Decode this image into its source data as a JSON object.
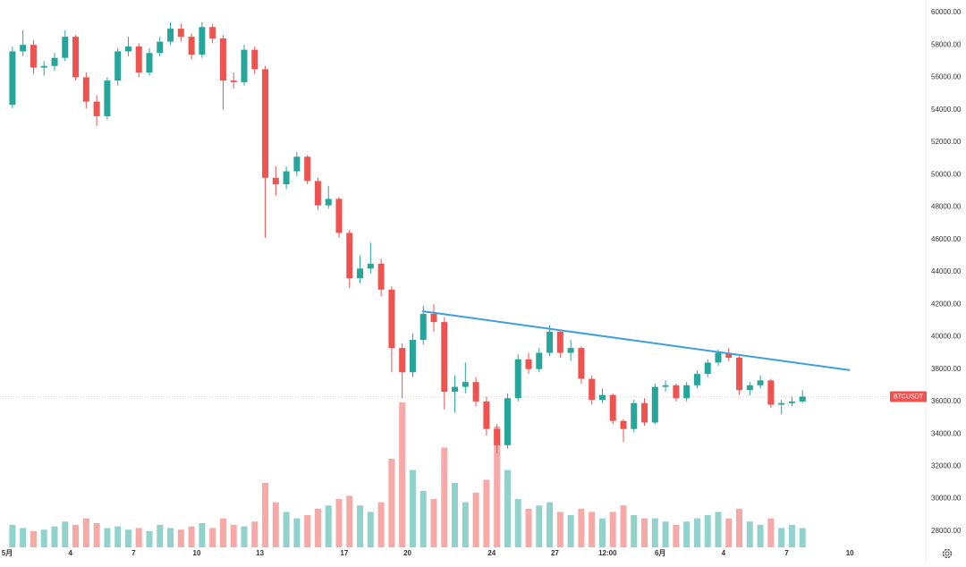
{
  "chart_data": {
    "type": "candlestick",
    "x": [
      0.25,
      0.75,
      1.25,
      1.75,
      2.25,
      2.75,
      3.25,
      3.75,
      4.25,
      4.75,
      5.25,
      5.75,
      6.25,
      6.75,
      7.25,
      7.75,
      8.25,
      8.75,
      9.25,
      9.75,
      10.25,
      10.75,
      11.25,
      11.75,
      12.25,
      12.75,
      13.25,
      13.75,
      14.25,
      14.75,
      15.25,
      15.75,
      16.25,
      16.75,
      17.25,
      17.75,
      18.25,
      18.75,
      19.25,
      19.75,
      20.25,
      20.75,
      21.25,
      21.75,
      22.25,
      22.75,
      23.25,
      23.75,
      24.25,
      24.75,
      25.25,
      25.75,
      26.25,
      26.75,
      27.25,
      27.75,
      28.25,
      28.75,
      29.25,
      29.75,
      30.25,
      30.75,
      31.25,
      31.75,
      32.25,
      32.75,
      33.25,
      33.75,
      34.25,
      34.75,
      35.25,
      35.75,
      36.25,
      36.75,
      37.25,
      37.75
    ],
    "open": [
      54300,
      57600,
      58000,
      56600,
      56700,
      57200,
      58500,
      56000,
      54500,
      53600,
      55800,
      57600,
      57900,
      56300,
      57500,
      58200,
      59000,
      58500,
      57400,
      59100,
      58400,
      55800,
      55700,
      57700,
      56500,
      49800,
      49400,
      50200,
      51100,
      49600,
      48100,
      48500,
      46400,
      43600,
      44200,
      44500,
      42900,
      39300,
      37800,
      39800,
      41400,
      40900,
      36600,
      36900,
      37200,
      36000,
      34300,
      33300,
      36200,
      38600,
      38000,
      39000,
      40300,
      39000,
      39300,
      37400,
      36100,
      36400,
      34800,
      34300,
      35900,
      34700,
      36900,
      37000,
      36200,
      37000,
      37700,
      38400,
      39000,
      38700,
      36700,
      37000,
      37300,
      35800,
      35900,
      36000
    ],
    "high": [
      57900,
      58900,
      58300,
      57000,
      57500,
      58900,
      58600,
      56300,
      54900,
      56000,
      57800,
      58500,
      58100,
      57800,
      58500,
      59400,
      59300,
      58700,
      59400,
      59300,
      58600,
      56300,
      58000,
      57900,
      56700,
      50500,
      50500,
      51400,
      51200,
      49800,
      49300,
      48600,
      46600,
      45000,
      45800,
      44800,
      43100,
      39600,
      40200,
      41900,
      42000,
      41200,
      37600,
      38400,
      37500,
      36300,
      34600,
      36500,
      38900,
      39000,
      39300,
      40700,
      40400,
      39800,
      39400,
      37600,
      36800,
      36500,
      34900,
      36100,
      36200,
      37100,
      37300,
      37100,
      37200,
      37900,
      38600,
      39200,
      39300,
      38800,
      37200,
      37600,
      37400,
      36100,
      36300,
      36700
    ],
    "low": [
      54100,
      57300,
      56200,
      56100,
      56400,
      57000,
      55800,
      54100,
      53000,
      53400,
      55500,
      57300,
      56000,
      56100,
      57300,
      58000,
      58200,
      57100,
      57200,
      58100,
      54000,
      55300,
      55500,
      56200,
      46100,
      48700,
      49100,
      49900,
      49400,
      47800,
      47900,
      46100,
      43000,
      43300,
      43900,
      42500,
      37800,
      36200,
      37500,
      39500,
      40300,
      35500,
      35300,
      36500,
      35700,
      33900,
      32800,
      33100,
      36000,
      37700,
      37800,
      38800,
      38700,
      38500,
      37100,
      35800,
      35900,
      34600,
      33500,
      34100,
      34500,
      34600,
      36600,
      36000,
      36000,
      36800,
      37500,
      38200,
      38500,
      36400,
      36400,
      36800,
      35600,
      35200,
      35700,
      35900
    ],
    "close": [
      57600,
      58000,
      56600,
      56700,
      57200,
      58500,
      56000,
      54500,
      53600,
      55800,
      57600,
      57900,
      56300,
      57500,
      58200,
      59000,
      58500,
      57400,
      59100,
      58400,
      55800,
      55700,
      57700,
      56500,
      49800,
      49400,
      50200,
      51100,
      49600,
      48100,
      48500,
      46400,
      43600,
      44200,
      44500,
      42900,
      39300,
      37800,
      39800,
      41400,
      40900,
      36600,
      36900,
      37200,
      36000,
      34300,
      33300,
      36200,
      38600,
      38000,
      39000,
      40300,
      39000,
      39300,
      37400,
      36100,
      36400,
      34800,
      34300,
      35900,
      34700,
      36900,
      37000,
      36200,
      37000,
      37700,
      38400,
      39000,
      38700,
      36700,
      37000,
      37300,
      35800,
      35900,
      36000,
      36300
    ],
    "volume": [
      14,
      12,
      10,
      11,
      13,
      16,
      14,
      18,
      15,
      12,
      13,
      11,
      12,
      10,
      14,
      12,
      11,
      13,
      15,
      12,
      18,
      14,
      13,
      16,
      40,
      28,
      22,
      18,
      20,
      24,
      26,
      30,
      32,
      26,
      22,
      28,
      55,
      90,
      48,
      35,
      30,
      62,
      40,
      28,
      34,
      42,
      75,
      48,
      30,
      24,
      26,
      28,
      22,
      20,
      24,
      22,
      18,
      22,
      26,
      20,
      18,
      18,
      16,
      14,
      16,
      18,
      20,
      22,
      18,
      24,
      16,
      14,
      18,
      12,
      14,
      12
    ],
    "up_color": "#26a69a",
    "down_color": "#ef5350",
    "xlim": [
      -0.34,
      43.6
    ],
    "xticks": [
      {
        "value": 0,
        "label": "5月"
      },
      {
        "value": 3,
        "label": "4"
      },
      {
        "value": 6,
        "label": "7"
      },
      {
        "value": 9,
        "label": "10"
      },
      {
        "value": 12,
        "label": "13"
      },
      {
        "value": 16,
        "label": "17"
      },
      {
        "value": 19,
        "label": "20"
      },
      {
        "value": 23,
        "label": "24"
      },
      {
        "value": 26,
        "label": "27"
      },
      {
        "value": 28.5,
        "label": "12:00"
      },
      {
        "value": 31,
        "label": "6月"
      },
      {
        "value": 34,
        "label": "4"
      },
      {
        "value": 37,
        "label": "7"
      },
      {
        "value": 40,
        "label": "10"
      }
    ],
    "ylim": [
      27000,
      60770
    ],
    "yticks": [
      {
        "value": 28000,
        "label": "28000.00"
      },
      {
        "value": 30000,
        "label": "30000.00"
      },
      {
        "value": 32000,
        "label": "32000.00"
      },
      {
        "value": 34000,
        "label": "34000.00"
      },
      {
        "value": 36000,
        "label": "36000.00"
      },
      {
        "value": 38000,
        "label": "38000.00"
      },
      {
        "value": 40000,
        "label": "40000.00"
      },
      {
        "value": 42000,
        "label": "42000.00"
      },
      {
        "value": 44000,
        "label": "44000.00"
      },
      {
        "value": 46000,
        "label": "46000.00"
      },
      {
        "value": 48000,
        "label": "48000.00"
      },
      {
        "value": 50000,
        "label": "50000.00"
      },
      {
        "value": 52000,
        "label": "52000.00"
      },
      {
        "value": 54000,
        "label": "54000.00"
      },
      {
        "value": 56000,
        "label": "56000.00"
      },
      {
        "value": 58000,
        "label": "58000.00"
      },
      {
        "value": 60000,
        "label": "60000.00"
      }
    ],
    "vlim": [
      0,
      100
    ],
    "trendline": {
      "x": [
        19.7,
        40.0
      ],
      "values": [
        41570,
        37930
      ],
      "color": "#3d9ee0"
    },
    "last_price": {
      "label": "BTCUSDT",
      "value": 36300
    }
  }
}
